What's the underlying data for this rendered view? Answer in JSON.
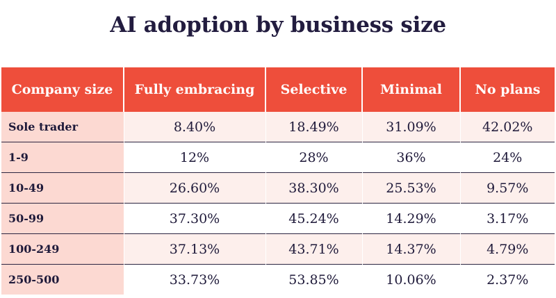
{
  "chart_data": {
    "type": "table",
    "title": "AI adoption by business size",
    "columns": [
      "Company size",
      "Fully embracing",
      "Selective",
      "Minimal",
      "No plans"
    ],
    "rows": [
      {
        "size": "Sole trader",
        "values": [
          "8.40%",
          "18.49%",
          "31.09%",
          "42.02%"
        ]
      },
      {
        "size": "1-9",
        "values": [
          "12%",
          "28%",
          "36%",
          "24%"
        ]
      },
      {
        "size": "10-49",
        "values": [
          "26.60%",
          "38.30%",
          "25.53%",
          "9.57%"
        ]
      },
      {
        "size": "50-99",
        "values": [
          "37.30%",
          "45.24%",
          "14.29%",
          "3.17%"
        ]
      },
      {
        "size": "100-249",
        "values": [
          "37.13%",
          "43.71%",
          "14.37%",
          "4.79%"
        ]
      },
      {
        "size": "250-500",
        "values": [
          "33.73%",
          "53.85%",
          "10.06%",
          "2.37%"
        ]
      }
    ]
  },
  "colors": {
    "header_bg": "#ee4e3b",
    "header_text": "#ffffff",
    "first_col_bg": "#fcd9d2",
    "row_tint": "#fdefec",
    "title_text": "#221c3f"
  }
}
